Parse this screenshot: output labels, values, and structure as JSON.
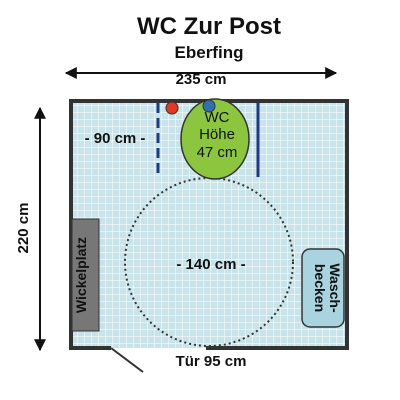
{
  "title": "WC Zur Post",
  "subtitle": "Eberfing",
  "width_label": "235 cm",
  "height_label": "220 cm",
  "toilet": {
    "line1": "WC",
    "line2": "Höhe",
    "line3": "47 cm"
  },
  "toilet_distance_label": "- 90 cm -",
  "turning_circle_label": "- 140 cm -",
  "changing_table_label": "Wickelplatz",
  "sink": {
    "line1": "Wasch-",
    "line2": "becken"
  },
  "door_label": "Tür 95 cm",
  "colors": {
    "floor_tile": "#c8e4ea",
    "wall": "#333333",
    "toilet": "#8cc63f",
    "sink": "#a9d3de",
    "changing_table": "#777777",
    "grab_bar": "#1d3a8a",
    "red_button": "#e53822",
    "blue_button": "#2f6fb6"
  }
}
